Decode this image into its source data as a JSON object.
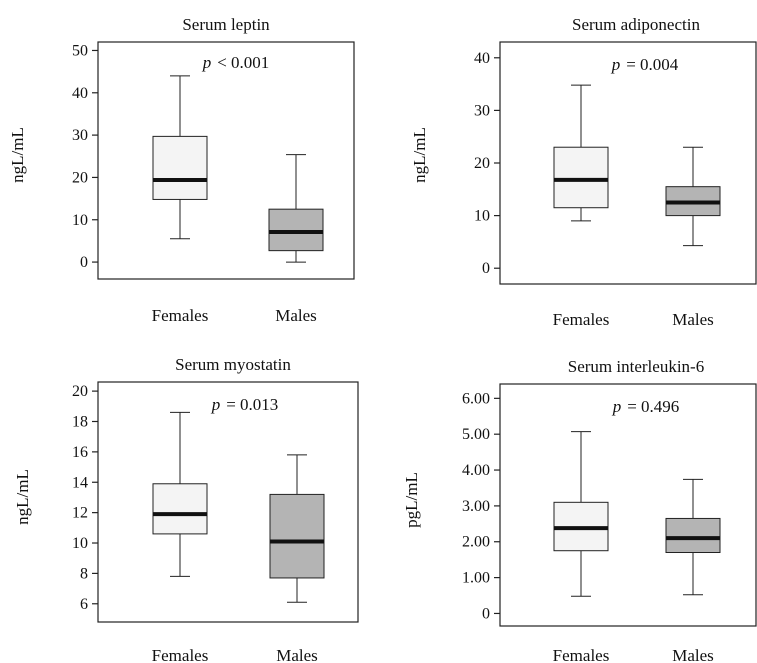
{
  "colors": {
    "female_box": "#f4f4f4",
    "male_box": "#b4b4b4",
    "median": "#111111",
    "frame": "#222222"
  },
  "chart_data": [
    {
      "type": "boxplot",
      "title": "Serum leptin",
      "ylabel": "ngL/mL",
      "p_prefix": "p",
      "p_text": "< 0.001",
      "ylim": [
        -4,
        52
      ],
      "yticks": [
        0,
        10,
        20,
        30,
        40,
        50
      ],
      "ytick_labels": [
        "0",
        "10",
        "20",
        "30",
        "40",
        "50"
      ],
      "categories": [
        "Females",
        "Males"
      ],
      "boxes": [
        {
          "category": "Females",
          "min": 5.5,
          "q1": 14.8,
          "median": 19.4,
          "q3": 29.7,
          "max": 44.0
        },
        {
          "category": "Males",
          "min": 0.0,
          "q1": 2.7,
          "median": 7.1,
          "q3": 12.5,
          "max": 25.4
        }
      ]
    },
    {
      "type": "boxplot",
      "title": "Serum adiponectin",
      "ylabel": "ngL/mL",
      "p_prefix": "p",
      "p_text": "= 0.004",
      "ylim": [
        -3,
        43
      ],
      "yticks": [
        0,
        10,
        20,
        30,
        40
      ],
      "ytick_labels": [
        "0",
        "10",
        "20",
        "30",
        "40"
      ],
      "categories": [
        "Females",
        "Males"
      ],
      "boxes": [
        {
          "category": "Females",
          "min": 9.0,
          "q1": 11.5,
          "median": 16.8,
          "q3": 23.0,
          "max": 34.8
        },
        {
          "category": "Males",
          "min": 4.3,
          "q1": 10.0,
          "median": 12.5,
          "q3": 15.5,
          "max": 23.0
        }
      ]
    },
    {
      "type": "boxplot",
      "title": "Serum myostatin",
      "ylabel": "ngL/mL",
      "p_prefix": "p",
      "p_text": "= 0.013",
      "ylim": [
        4.8,
        20.6
      ],
      "yticks": [
        6,
        8,
        10,
        12,
        14,
        16,
        18,
        20
      ],
      "ytick_labels": [
        "6",
        "8",
        "10",
        "12",
        "14",
        "16",
        "18",
        "20"
      ],
      "categories": [
        "Females",
        "Males"
      ],
      "boxes": [
        {
          "category": "Females",
          "min": 7.8,
          "q1": 10.6,
          "median": 11.9,
          "q3": 13.9,
          "max": 18.6
        },
        {
          "category": "Males",
          "min": 6.1,
          "q1": 7.7,
          "median": 10.1,
          "q3": 13.2,
          "max": 15.8
        }
      ]
    },
    {
      "type": "boxplot",
      "title": "Serum interleukin-6",
      "ylabel": "pgL/mL",
      "p_prefix": "p",
      "p_text": "= 0.496",
      "ylim": [
        -0.35,
        6.4
      ],
      "yticks": [
        0,
        1,
        2,
        3,
        4,
        5,
        6
      ],
      "ytick_labels": [
        "0",
        "1.00",
        "2.00",
        "3.00",
        "4.00",
        "5.00",
        "6.00"
      ],
      "categories": [
        "Females",
        "Males"
      ],
      "boxes": [
        {
          "category": "Females",
          "min": 0.48,
          "q1": 1.75,
          "median": 2.38,
          "q3": 3.1,
          "max": 5.07
        },
        {
          "category": "Males",
          "min": 0.52,
          "q1": 1.7,
          "median": 2.1,
          "q3": 2.65,
          "max": 3.74
        }
      ]
    }
  ]
}
